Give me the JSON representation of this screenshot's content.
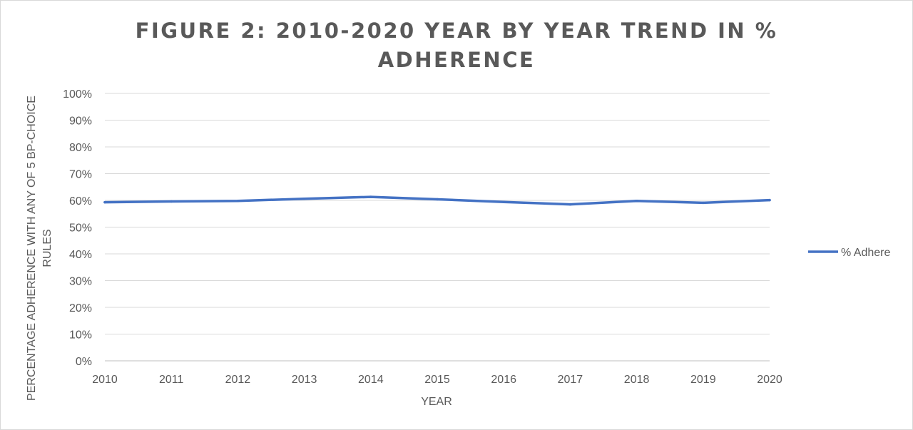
{
  "chart_data": {
    "type": "line",
    "title_lines": [
      "FIGURE 2: 2010-2020 YEAR BY YEAR TREND IN %",
      "ADHERENCE"
    ],
    "xlabel": "YEAR",
    "ylabel_lines": [
      "PERCENTAGE ADHERENCE WITH ANY OF 5 BP-CHOICE",
      "RULES"
    ],
    "categories": [
      "2010",
      "2011",
      "2012",
      "2013",
      "2014",
      "2015",
      "2016",
      "2017",
      "2018",
      "2019",
      "2020"
    ],
    "series": [
      {
        "name": "% Adhere",
        "color": "#4472c4",
        "values": [
          0.593,
          0.596,
          0.598,
          0.606,
          0.613,
          0.604,
          0.594,
          0.585,
          0.598,
          0.591,
          0.601
        ]
      }
    ],
    "ylim": [
      0,
      1
    ],
    "yticks": [
      "0%",
      "10%",
      "20%",
      "30%",
      "40%",
      "50%",
      "60%",
      "70%",
      "80%",
      "90%",
      "100%"
    ],
    "grid": true,
    "legend_position": "right"
  }
}
